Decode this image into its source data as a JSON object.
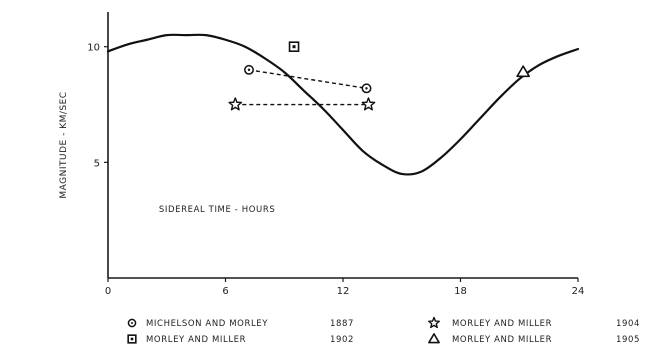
{
  "chart_data": {
    "type": "line",
    "title": "",
    "xlabel": "SIDEREAL TIME - HOURS",
    "ylabel": "MAGNITUDE - KM/SEC",
    "xlim": [
      0,
      24
    ],
    "ylim": [
      0,
      11.5
    ],
    "xticks": [
      0,
      6,
      12,
      18,
      24
    ],
    "xtick_labels": [
      "0",
      "6",
      "12",
      "18",
      "24"
    ],
    "yticks": [
      5,
      10
    ],
    "ytick_labels": [
      "5",
      "10"
    ],
    "grid": false,
    "legend_position": "bottom",
    "curve": {
      "x": [
        0,
        1,
        2,
        3,
        4,
        5,
        6,
        7,
        8,
        9,
        10,
        11,
        12,
        13,
        14,
        15,
        16,
        17,
        18,
        19,
        20,
        21,
        22,
        23,
        24
      ],
      "y": [
        9.8,
        10.1,
        10.3,
        10.5,
        10.5,
        10.5,
        10.3,
        10.0,
        9.5,
        8.9,
        8.1,
        7.3,
        6.4,
        5.5,
        4.9,
        4.5,
        4.6,
        5.2,
        6.0,
        6.9,
        7.8,
        8.6,
        9.2,
        9.6,
        9.9
      ]
    },
    "series": [
      {
        "marker": "circle",
        "points": [
          {
            "x": 7.2,
            "y": 9.0
          },
          {
            "x": 13.2,
            "y": 8.2
          }
        ],
        "connected": true
      },
      {
        "marker": "square",
        "points": [
          {
            "x": 9.5,
            "y": 10.0
          }
        ],
        "connected": false
      },
      {
        "marker": "star",
        "points": [
          {
            "x": 6.5,
            "y": 7.5
          },
          {
            "x": 13.3,
            "y": 7.5
          }
        ],
        "connected": true
      },
      {
        "marker": "triangle",
        "points": [
          {
            "x": 21.2,
            "y": 8.9
          }
        ],
        "connected": false
      }
    ],
    "legend": [
      {
        "marker": "circle",
        "label": "MICHELSON  AND  MORLEY",
        "year": "1887"
      },
      {
        "marker": "square",
        "label": "MORLEY  AND  MILLER",
        "year": "1902"
      },
      {
        "marker": "star",
        "label": "MORLEY  AND  MILLER",
        "year": "1904"
      },
      {
        "marker": "triangle",
        "label": "MORLEY  AND  MILLER",
        "year": "1905"
      }
    ]
  }
}
